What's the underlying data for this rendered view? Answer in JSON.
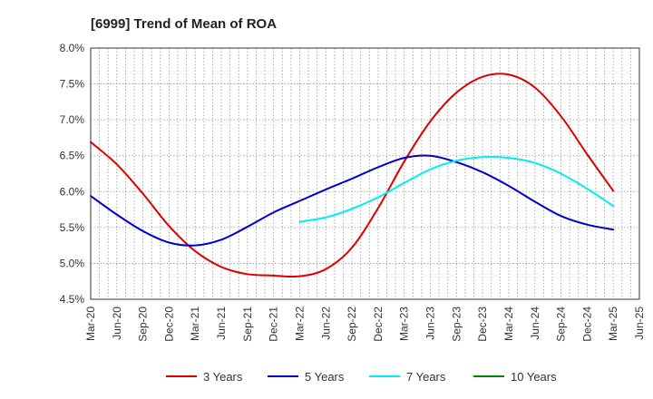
{
  "chart_data": {
    "type": "line",
    "title": "[6999]  Trend of Mean of ROA",
    "xlabel": "",
    "ylabel": "",
    "ylim": [
      4.5,
      8.0
    ],
    "grid": true,
    "legend_position": "bottom",
    "x_ticks": [
      "Mar-20",
      "Jun-20",
      "Sep-20",
      "Dec-20",
      "Mar-21",
      "Jun-21",
      "Sep-21",
      "Dec-21",
      "Mar-22",
      "Jun-22",
      "Sep-22",
      "Dec-22",
      "Mar-23",
      "Jun-23",
      "Sep-23",
      "Dec-23",
      "Mar-24",
      "Jun-24",
      "Sep-24",
      "Dec-24",
      "Mar-25",
      "Jun-25"
    ],
    "y_ticks": [
      "4.5%",
      "5.0%",
      "5.5%",
      "6.0%",
      "6.5%",
      "7.0%",
      "7.5%",
      "8.0%"
    ],
    "y_tick_values": [
      4.5,
      5.0,
      5.5,
      6.0,
      6.5,
      7.0,
      7.5,
      8.0
    ],
    "series": [
      {
        "name": "3 Years",
        "color": "#dd0000",
        "x": [
          "Mar-20",
          "Jun-20",
          "Sep-20",
          "Dec-20",
          "Mar-21",
          "Jun-21",
          "Sep-21",
          "Dec-21",
          "Mar-22",
          "Jun-22",
          "Sep-22",
          "Dec-22",
          "Mar-23",
          "Jun-23",
          "Sep-23",
          "Dec-23",
          "Mar-24",
          "Jun-24",
          "Sep-24",
          "Dec-24",
          "Mar-25"
        ],
        "values": [
          6.69,
          6.38,
          5.97,
          5.52,
          5.17,
          4.95,
          4.85,
          4.83,
          4.82,
          4.92,
          5.22,
          5.77,
          6.42,
          6.98,
          7.38,
          7.6,
          7.63,
          7.45,
          7.05,
          6.52,
          6.01
        ]
      },
      {
        "name": "5 Years",
        "color": "#0000cc",
        "x": [
          "Mar-20",
          "Jun-20",
          "Sep-20",
          "Dec-20",
          "Mar-21",
          "Jun-21",
          "Sep-21",
          "Dec-21",
          "Mar-22",
          "Jun-22",
          "Sep-22",
          "Dec-22",
          "Mar-23",
          "Jun-23",
          "Sep-23",
          "Dec-23",
          "Mar-24",
          "Jun-24",
          "Sep-24",
          "Dec-24",
          "Mar-25"
        ],
        "values": [
          5.94,
          5.68,
          5.45,
          5.29,
          5.25,
          5.33,
          5.51,
          5.71,
          5.87,
          6.03,
          6.18,
          6.34,
          6.47,
          6.5,
          6.41,
          6.27,
          6.08,
          5.86,
          5.66,
          5.54,
          5.47
        ]
      },
      {
        "name": "7 Years",
        "color": "#00eeee",
        "x": [
          "Mar-22",
          "Jun-22",
          "Sep-22",
          "Dec-22",
          "Mar-23",
          "Jun-23",
          "Sep-23",
          "Dec-23",
          "Mar-24",
          "Jun-24",
          "Sep-24",
          "Dec-24",
          "Mar-25"
        ],
        "values": [
          5.58,
          5.64,
          5.76,
          5.92,
          6.12,
          6.31,
          6.43,
          6.48,
          6.47,
          6.4,
          6.25,
          6.04,
          5.8
        ]
      },
      {
        "name": "10 Years",
        "color": "#008800",
        "x": [],
        "values": []
      }
    ]
  }
}
